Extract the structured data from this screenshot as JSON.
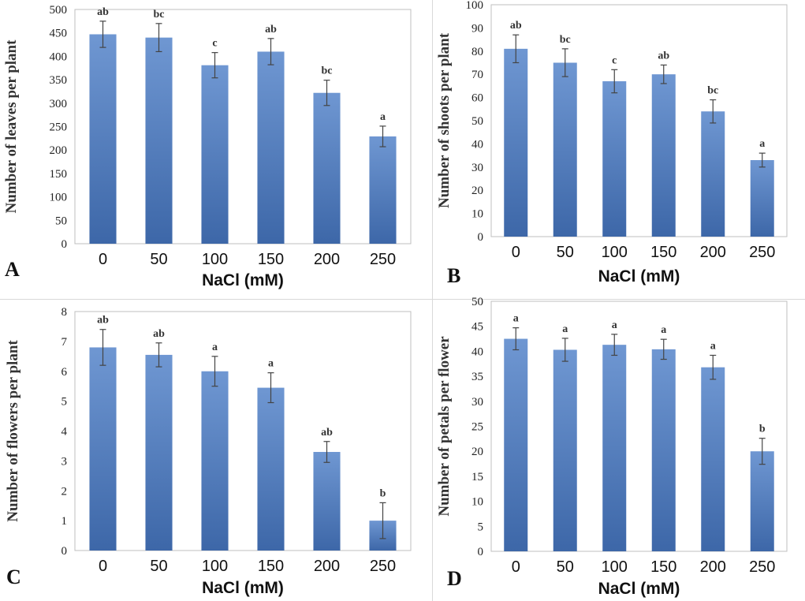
{
  "colors": {
    "bar_top": "#6f97d2",
    "bar_bottom": "#3d67a8",
    "error_bar": "#444444",
    "grid": "#d9d9d9",
    "plot_border": "#bfbfbf"
  },
  "chart_data": [
    {
      "panel": "A",
      "type": "bar",
      "categories": [
        "0",
        "50",
        "100",
        "150",
        "200",
        "250"
      ],
      "values": [
        447,
        440,
        381,
        410,
        322,
        229
      ],
      "errors": [
        28,
        30,
        27,
        28,
        27,
        22
      ],
      "significance": [
        "ab",
        "bc",
        "c",
        "ab",
        "bc",
        "a"
      ],
      "ylabel": "Number of leaves per plant",
      "xlabel": "NaCl (mM)",
      "ylim": [
        0,
        500
      ],
      "yticks": [
        "0",
        "50",
        "100",
        "150",
        "200",
        "250",
        "300",
        "350",
        "400",
        "450",
        "500"
      ],
      "grid": false
    },
    {
      "panel": "B",
      "type": "bar",
      "categories": [
        "0",
        "50",
        "100",
        "150",
        "200",
        "250"
      ],
      "values": [
        81,
        75,
        67,
        70,
        54,
        33
      ],
      "errors": [
        6,
        6,
        5,
        4,
        5,
        3
      ],
      "significance": [
        "ab",
        "bc",
        "c",
        "ab",
        "bc",
        "a"
      ],
      "ylabel": "Number of shoots per plant",
      "xlabel": "NaCl (mM)",
      "ylim": [
        0,
        100
      ],
      "yticks": [
        "0",
        "10",
        "20",
        "30",
        "40",
        "50",
        "60",
        "70",
        "80",
        "90",
        "100"
      ],
      "grid": false
    },
    {
      "panel": "C",
      "type": "bar",
      "categories": [
        "0",
        "50",
        "100",
        "150",
        "200",
        "250"
      ],
      "values": [
        6.8,
        6.55,
        6.0,
        5.45,
        3.3,
        1.0
      ],
      "errors": [
        0.6,
        0.4,
        0.5,
        0.5,
        0.35,
        0.6
      ],
      "significance": [
        "ab",
        "ab",
        "a",
        "a",
        "ab",
        "b"
      ],
      "ylabel": "Number of flowers per plant",
      "xlabel": "NaCl (mM)",
      "ylim": [
        0,
        8
      ],
      "yticks": [
        "0",
        "1",
        "2",
        "3",
        "4",
        "5",
        "6",
        "7",
        "8"
      ],
      "grid": false
    },
    {
      "panel": "D",
      "type": "bar",
      "categories": [
        "0",
        "50",
        "100",
        "150",
        "200",
        "250"
      ],
      "values": [
        42.5,
        40.3,
        41.3,
        40.4,
        36.8,
        20.0
      ],
      "errors": [
        2.2,
        2.3,
        2.1,
        2.0,
        2.4,
        2.6
      ],
      "significance": [
        "a",
        "a",
        "a",
        "a",
        "a",
        "b"
      ],
      "ylabel": "Number of petals per flower",
      "xlabel": "NaCl (mM)",
      "ylim": [
        0,
        50
      ],
      "yticks": [
        "0",
        "5",
        "10",
        "15",
        "20",
        "25",
        "30",
        "35",
        "40",
        "45",
        "50"
      ],
      "grid": false
    }
  ]
}
